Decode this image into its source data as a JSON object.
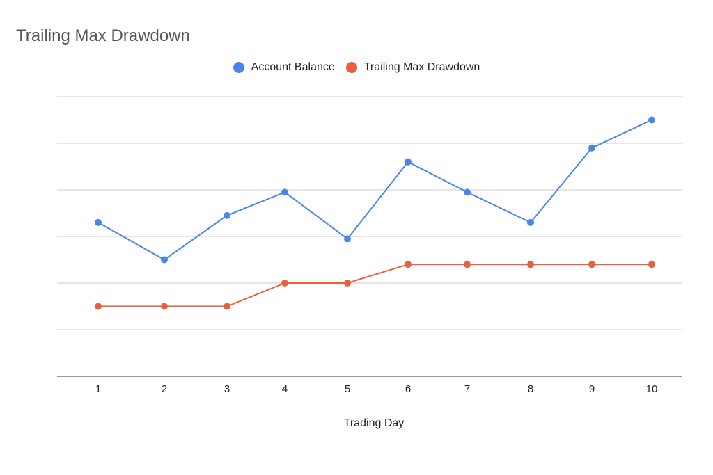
{
  "chart_data": {
    "type": "line",
    "title": "Trailing Max Drawdown",
    "xlabel": "Trading Day",
    "ylabel": "",
    "categories": [
      "1",
      "2",
      "3",
      "4",
      "5",
      "6",
      "7",
      "8",
      "9",
      "10"
    ],
    "ylim": [
      0,
      6
    ],
    "y_tick_labels_shown": false,
    "grid": true,
    "legend_position": "top-center",
    "series": [
      {
        "name": "Account Balance",
        "color": "#4a86e8",
        "values": [
          3.3,
          2.5,
          3.45,
          3.95,
          2.95,
          4.6,
          3.95,
          3.3,
          4.9,
          5.5
        ]
      },
      {
        "name": "Trailing Max Drawdown",
        "color": "#e8603c",
        "values": [
          1.5,
          1.5,
          1.5,
          2.0,
          2.0,
          2.4,
          2.4,
          2.4,
          2.4,
          2.4
        ]
      }
    ]
  }
}
